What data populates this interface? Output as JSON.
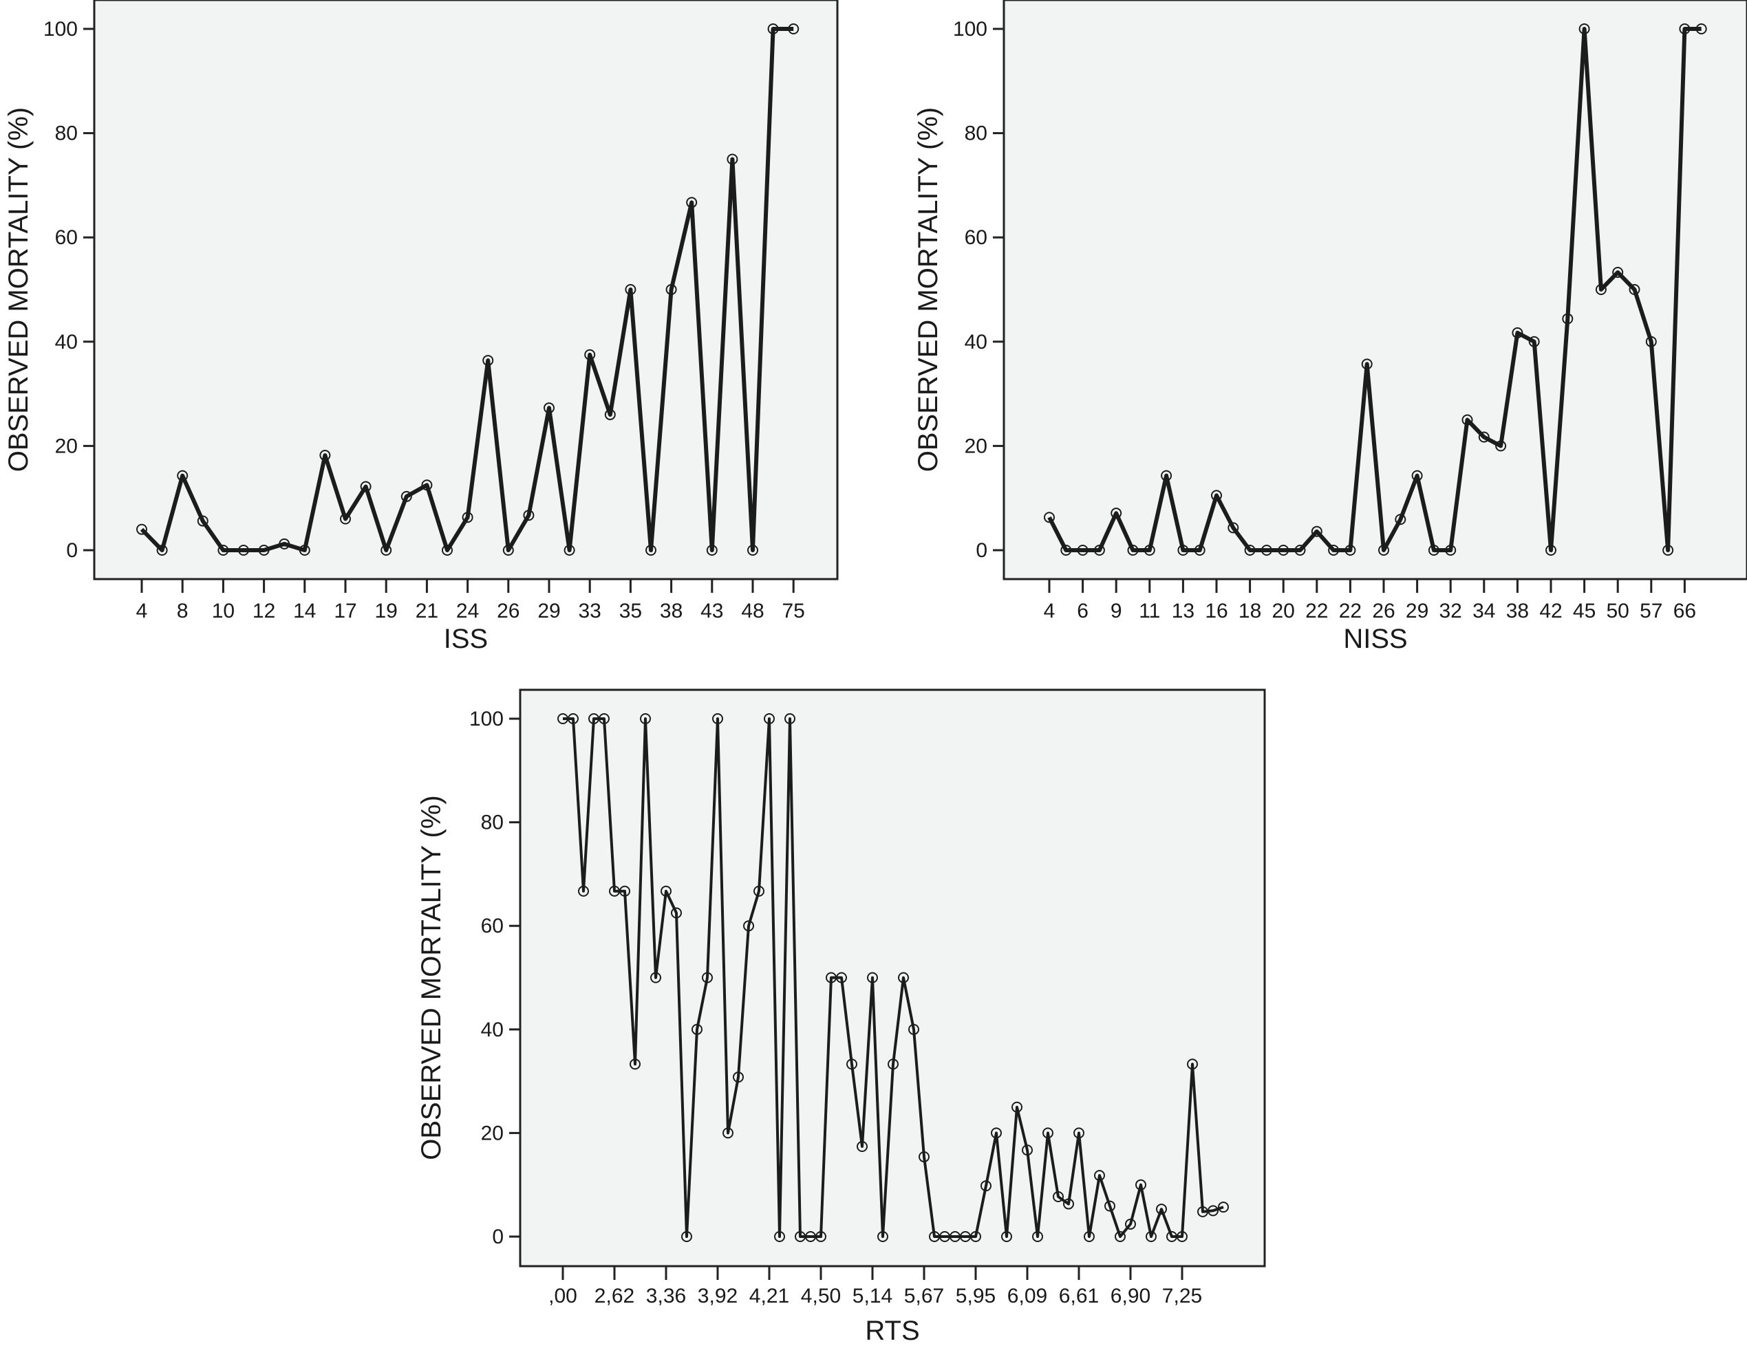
{
  "chart_data": [
    {
      "id": "iss",
      "type": "line",
      "title": "",
      "xlabel": "ISS",
      "ylabel": "OBSERVED MORTALITY (%)",
      "ylim": [
        0,
        100
      ],
      "yticks": [
        0,
        20,
        40,
        60,
        80,
        100
      ],
      "grid": false,
      "legend": "none",
      "marker": "open-circle",
      "x_tick_labels": [
        "4",
        "8",
        "10",
        "12",
        "14",
        "17",
        "19",
        "21",
        "24",
        "26",
        "29",
        "33",
        "35",
        "38",
        "43",
        "48",
        "75"
      ],
      "x_tick_every": 2,
      "series": [
        {
          "name": "Observed mortality",
          "values": [
            4,
            0,
            14.3,
            5.6,
            0,
            0,
            0,
            1.2,
            0,
            18.2,
            6,
            12.2,
            0,
            10.3,
            12.5,
            0,
            6.3,
            36.4,
            0,
            6.7,
            27.3,
            0,
            37.5,
            26,
            50,
            0,
            50,
            66.7,
            0,
            75,
            0,
            100,
            100
          ]
        }
      ]
    },
    {
      "id": "niss",
      "type": "line",
      "title": "",
      "xlabel": "NISS",
      "ylabel": "OBSERVED MORTALITY (%)",
      "ylim": [
        0,
        100
      ],
      "yticks": [
        0,
        20,
        40,
        60,
        80,
        100
      ],
      "grid": false,
      "legend": "none",
      "marker": "open-circle",
      "x_tick_labels": [
        "4",
        "6",
        "9",
        "11",
        "13",
        "16",
        "18",
        "20",
        "22",
        "22",
        "26",
        "29",
        "32",
        "34",
        "38",
        "42",
        "45",
        "50",
        "57",
        "66"
      ],
      "x_tick_every": 2,
      "series": [
        {
          "name": "Observed mortality",
          "values": [
            6.3,
            0,
            0,
            0,
            7.1,
            0,
            0,
            14.3,
            0,
            0,
            10.5,
            4.3,
            0,
            0,
            0,
            0,
            3.6,
            0,
            0,
            35.7,
            0,
            5.9,
            14.3,
            0,
            0,
            25,
            21.7,
            20,
            41.7,
            40,
            0,
            44.4,
            100,
            50,
            53.3,
            50,
            40,
            0,
            100,
            100
          ]
        }
      ]
    },
    {
      "id": "rts",
      "type": "line",
      "title": "",
      "xlabel": "RTS",
      "ylabel": "OBSERVED MORTALITY (%)",
      "ylim": [
        0,
        100
      ],
      "yticks": [
        0,
        20,
        40,
        60,
        80,
        100
      ],
      "grid": false,
      "legend": "none",
      "marker": "open-circle",
      "x_tick_labels": [
        ",00",
        "2,62",
        "3,36",
        "3,92",
        "4,21",
        "4,50",
        "5,14",
        "5,67",
        "5,95",
        "6,09",
        "6,61",
        "6,90",
        "7,25"
      ],
      "x_tick_every": 5,
      "series": [
        {
          "name": "Observed mortality",
          "values": [
            100,
            100,
            66.7,
            100,
            100,
            66.7,
            66.7,
            33.3,
            100,
            50,
            66.7,
            62.5,
            0,
            40,
            50,
            100,
            20,
            30.8,
            60,
            66.7,
            100,
            0,
            100,
            0,
            0,
            0,
            50,
            50,
            33.3,
            17.4,
            50,
            0,
            33.3,
            50,
            40,
            15.4,
            0,
            0,
            0,
            0,
            0,
            9.8,
            20,
            0,
            25,
            16.7,
            0,
            20,
            7.7,
            6.3,
            20,
            0,
            11.8,
            5.9,
            0,
            2.4,
            10,
            0,
            5.3,
            0,
            0,
            33.3,
            4.8,
            5,
            5.7
          ]
        }
      ]
    }
  ]
}
